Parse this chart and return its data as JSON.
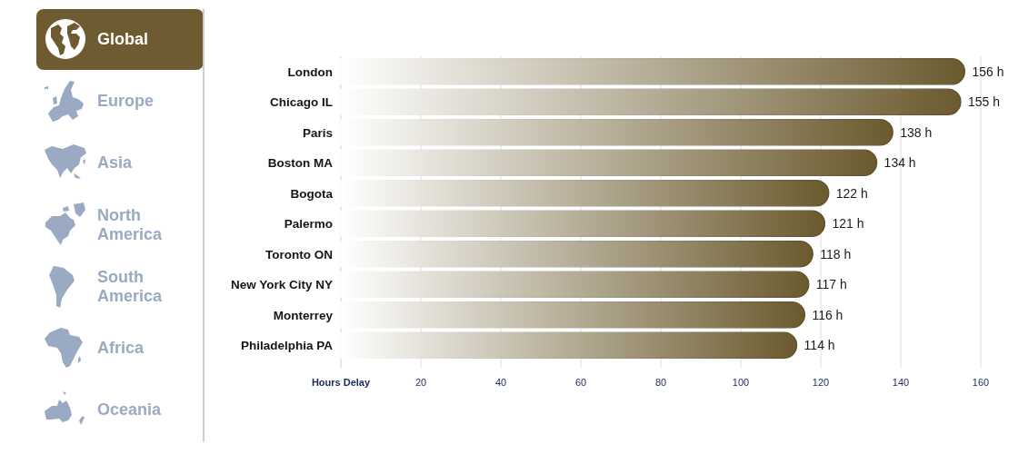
{
  "chart_data": {
    "type": "bar",
    "orientation": "horizontal",
    "categories": [
      "London",
      "Chicago IL",
      "Paris",
      "Boston MA",
      "Bogota",
      "Palermo",
      "Toronto ON",
      "New York City NY",
      "Monterrey",
      "Philadelphia PA"
    ],
    "values": [
      156,
      155,
      138,
      134,
      122,
      121,
      118,
      117,
      116,
      114
    ],
    "value_labels": [
      "156 h",
      "155 h",
      "138 h",
      "134 h",
      "122 h",
      "121 h",
      "118 h",
      "117 h",
      "116 h",
      "114 h"
    ],
    "color": "#6b5a2e",
    "xlabel": "Hours Delay",
    "xlim": [
      0,
      160
    ],
    "xticks": [
      20,
      40,
      60,
      80,
      100,
      120,
      140,
      160
    ],
    "grid": "x",
    "annotations": [
      "Global",
      "Europe",
      "Asia",
      "North America",
      "South America",
      "Africa",
      "Oceania"
    ]
  }
}
